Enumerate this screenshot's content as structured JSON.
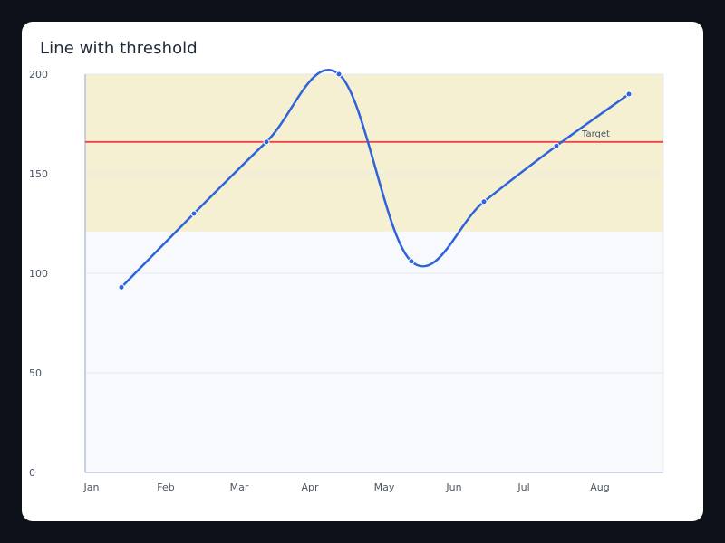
{
  "chart_data": {
    "type": "line",
    "title": "Line with threshold",
    "xlabel": "",
    "ylabel": "",
    "categories": [
      "Jan",
      "Feb",
      "Mar",
      "Apr",
      "May",
      "Jun",
      "Jul",
      "Aug"
    ],
    "series": [
      {
        "values": [
          93,
          130,
          166,
          200,
          106,
          136,
          164,
          190
        ]
      }
    ],
    "ylim": [
      0,
      200
    ],
    "yticks": [
      0,
      50,
      100,
      150,
      200
    ],
    "grid": true,
    "threshold": {
      "value": 166,
      "label": "Target",
      "color": "#ef4444"
    },
    "band": {
      "from": 121,
      "to": 200,
      "color": "#f6f0d2"
    },
    "plot_background": "#f7f9fc",
    "line_color": "#2f63d9"
  }
}
